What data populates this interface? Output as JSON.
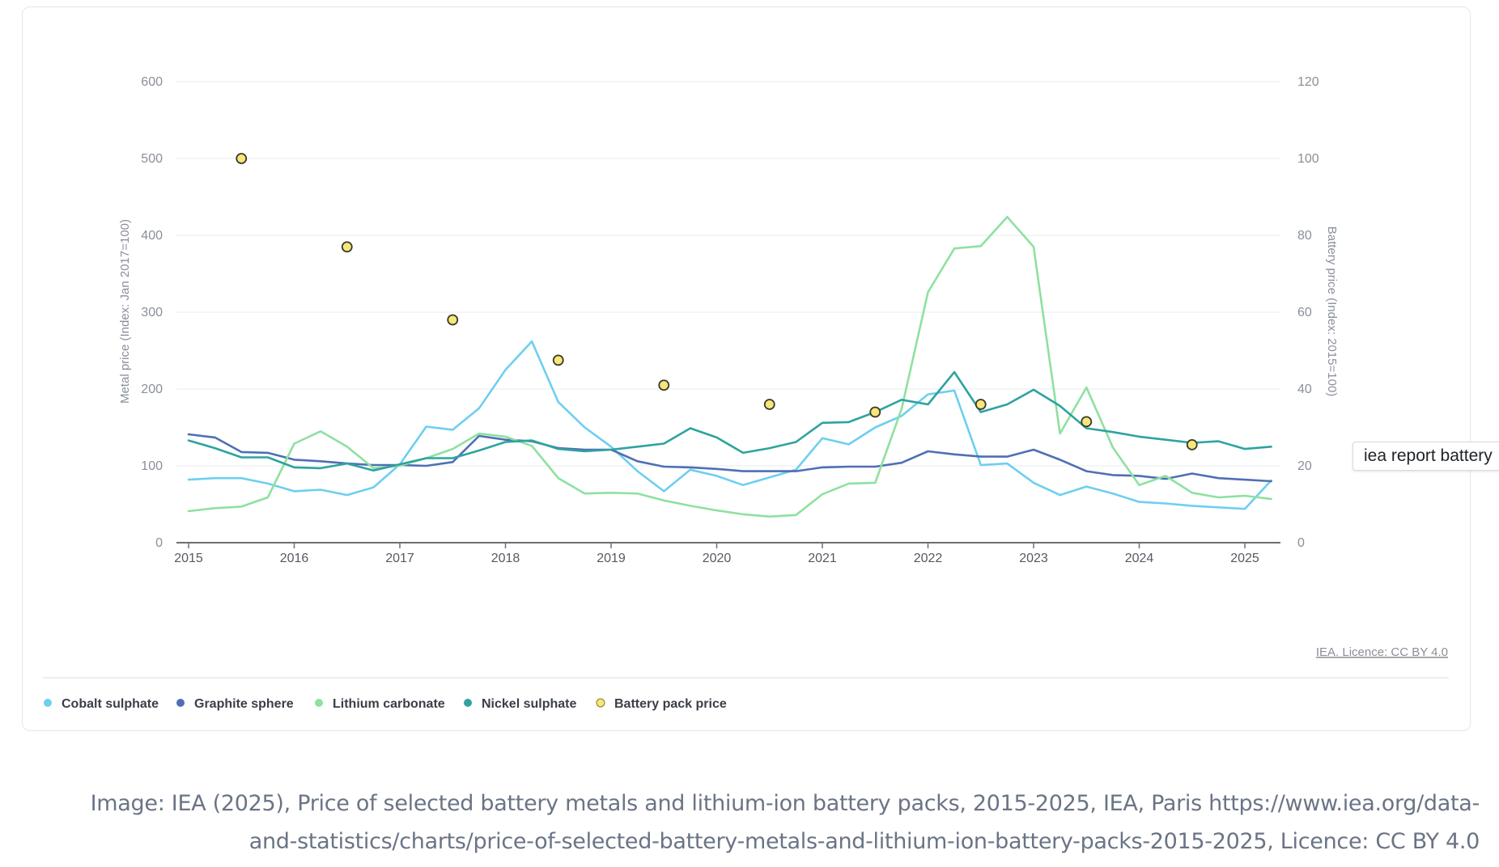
{
  "chart_data": {
    "type": "line",
    "title": "",
    "ylabel": "Metal price (Index: Jan 2017=100)",
    "ylabel_right": "Battery price (Index: 2015=100)",
    "ylim": [
      0,
      600
    ],
    "ylim_right": [
      0,
      120
    ],
    "yticks": [
      "0",
      "100",
      "200",
      "300",
      "400",
      "500",
      "600"
    ],
    "yticks_right": [
      "0",
      "20",
      "40",
      "60",
      "80",
      "100",
      "120"
    ],
    "xlim": [
      2015,
      2025.3
    ],
    "xticks": [
      "2015",
      "2016",
      "2017",
      "2018",
      "2019",
      "2020",
      "2021",
      "2022",
      "2023",
      "2024",
      "2025"
    ],
    "grid": true,
    "legend_placement": "bottom-left",
    "license_link": "IEA. Licence: CC BY 4.0",
    "x": [
      2015.0,
      2015.25,
      2015.5,
      2015.75,
      2016.0,
      2016.25,
      2016.5,
      2016.75,
      2017.0,
      2017.25,
      2017.5,
      2017.75,
      2018.0,
      2018.25,
      2018.5,
      2018.75,
      2019.0,
      2019.25,
      2019.5,
      2019.75,
      2020.0,
      2020.25,
      2020.5,
      2020.75,
      2021.0,
      2021.25,
      2021.5,
      2021.75,
      2022.0,
      2022.25,
      2022.5,
      2022.75,
      2023.0,
      2023.25,
      2023.5,
      2023.75,
      2024.0,
      2024.25,
      2024.5,
      2024.75,
      2025.0,
      2025.25
    ],
    "series": [
      {
        "name": "Cobalt sulphate",
        "color": "#6dcff0",
        "axis": "left",
        "values": [
          82,
          84,
          84,
          77,
          67,
          69,
          62,
          72,
          102,
          151,
          147,
          175,
          225,
          262,
          183,
          150,
          125,
          93,
          67,
          95,
          87,
          75,
          85,
          95,
          136,
          128,
          150,
          165,
          193,
          198,
          101,
          103,
          78,
          62,
          73,
          64,
          53,
          51,
          48,
          46,
          44,
          81
        ]
      },
      {
        "name": "Graphite sphere",
        "color": "#4f6fb5",
        "axis": "left",
        "values": [
          141,
          137,
          118,
          117,
          108,
          106,
          103,
          101,
          101,
          100,
          105,
          139,
          134,
          132,
          123,
          121,
          121,
          106,
          99,
          98,
          96,
          93,
          93,
          93,
          98,
          99,
          99,
          104,
          119,
          115,
          112,
          112,
          121,
          108,
          93,
          88,
          87,
          83,
          90,
          84,
          82,
          80
        ]
      },
      {
        "name": "Lithium carbonate",
        "color": "#8ee1a0",
        "axis": "left",
        "values": [
          41,
          45,
          47,
          59,
          129,
          145,
          125,
          97,
          100,
          110,
          122,
          142,
          138,
          126,
          84,
          64,
          65,
          64,
          55,
          48,
          42,
          37,
          34,
          36,
          63,
          77,
          78,
          174,
          326,
          383,
          386,
          424,
          385,
          142,
          202,
          124,
          75,
          87,
          65,
          59,
          61,
          57
        ]
      },
      {
        "name": "Nickel sulphate",
        "color": "#2ea3a0",
        "axis": "left",
        "values": [
          133,
          123,
          111,
          111,
          98,
          97,
          103,
          94,
          102,
          110,
          110,
          120,
          131,
          133,
          122,
          119,
          121,
          125,
          129,
          149,
          137,
          117,
          123,
          131,
          156,
          157,
          170,
          186,
          180,
          222,
          170,
          180,
          199,
          178,
          149,
          144,
          138,
          134,
          130,
          132,
          122,
          125
        ]
      },
      {
        "name": "Battery pack price",
        "color": "#f6e77a",
        "stroke": "#3a3a2a",
        "axis": "right",
        "marker": "dot",
        "x": [
          2015.5,
          2016.5,
          2017.5,
          2018.5,
          2019.5,
          2020.5,
          2021.5,
          2022.5,
          2023.5,
          2024.5
        ],
        "values": [
          100,
          77,
          58,
          47.5,
          41,
          36,
          34,
          36,
          31.5,
          25.5
        ]
      }
    ]
  },
  "tooltip": {
    "text": "iea report battery"
  },
  "caption": {
    "line1": "Image: IEA (2025), Price of selected battery metals and lithium-ion battery packs, 2015-2025, IEA, Paris https://www.iea.org/data-",
    "line2": "and-statistics/charts/price-of-selected-battery-metals-and-lithium-ion-battery-packs-2015-2025, Licence: CC BY 4.0"
  }
}
